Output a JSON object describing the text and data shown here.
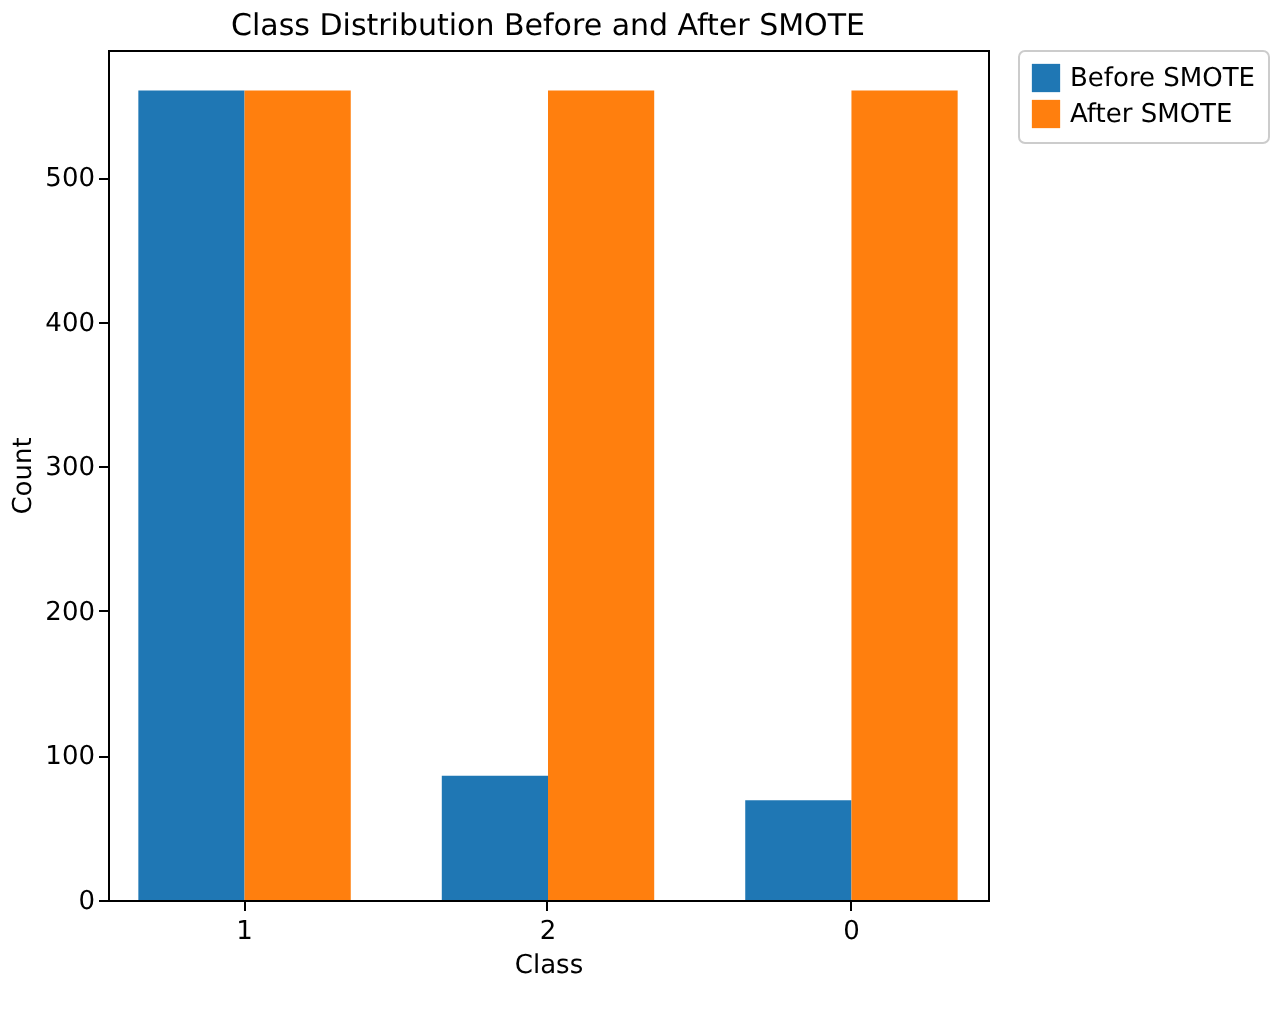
{
  "chart_data": {
    "type": "bar",
    "title": "Class Distribution Before and After SMOTE",
    "xlabel": "Class",
    "ylabel": "Count",
    "categories": [
      "1",
      "2",
      "0"
    ],
    "series": [
      {
        "name": "Before SMOTE",
        "color": "#1f77b4",
        "values": [
          560,
          86,
          69
        ]
      },
      {
        "name": "After SMOTE",
        "color": "#ff7f0e",
        "values": [
          560,
          560,
          560
        ]
      }
    ],
    "ylim": [
      0,
      588
    ],
    "yticks": [
      0,
      100,
      200,
      300,
      400,
      500
    ],
    "grid": false,
    "legend": "top right"
  }
}
